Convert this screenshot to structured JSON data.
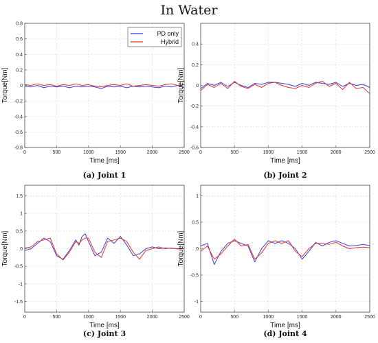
{
  "title": "In Water",
  "legend": [
    {
      "name": "PD only",
      "color": "#3b3bd6"
    },
    {
      "name": "Hybrid",
      "color": "#e03030"
    }
  ],
  "chart_data": [
    {
      "type": "line",
      "caption_label": "(a)",
      "caption_text": "Joint 1",
      "xlabel": "Time [ms]",
      "ylabel": "Torque[Nm]",
      "xlim": [
        0,
        2500
      ],
      "ylim": [
        -0.8,
        0.8
      ],
      "xticks": [
        0,
        500,
        1000,
        1500,
        2000,
        2500
      ],
      "yticks": [
        -0.8,
        -0.6,
        -0.4,
        -0.2,
        0,
        0.2,
        0.4,
        0.6,
        0.8
      ],
      "ytick_labels": [
        "-0.8",
        "-0.6",
        "-0.4",
        "-0.2",
        "0",
        "0.2",
        "0.4",
        "0.6",
        "0.8"
      ],
      "legend_position": "top-right",
      "series": [
        {
          "name": "PD only",
          "color": "#3b3bd6",
          "x": [
            0,
            100,
            200,
            300,
            400,
            500,
            600,
            700,
            800,
            900,
            1000,
            1100,
            1200,
            1300,
            1400,
            1500,
            1600,
            1700,
            1800,
            1900,
            2000,
            2100,
            2200,
            2300,
            2400,
            2500
          ],
          "y": [
            -0.01,
            -0.02,
            0.0,
            -0.03,
            -0.01,
            -0.02,
            -0.01,
            -0.03,
            -0.01,
            -0.02,
            -0.01,
            -0.02,
            -0.04,
            -0.01,
            -0.02,
            -0.01,
            -0.03,
            -0.01,
            -0.02,
            -0.01,
            -0.02,
            -0.03,
            -0.01,
            -0.02,
            0.0,
            -0.03
          ]
        },
        {
          "name": "Hybrid",
          "color": "#e03030",
          "x": [
            0,
            100,
            200,
            300,
            400,
            500,
            600,
            700,
            800,
            900,
            1000,
            1100,
            1200,
            1300,
            1400,
            1500,
            1600,
            1700,
            1800,
            1900,
            2000,
            2100,
            2200,
            2300,
            2400,
            2500
          ],
          "y": [
            0.01,
            0.0,
            0.02,
            0.0,
            0.01,
            -0.01,
            0.01,
            0.0,
            0.02,
            0.0,
            0.01,
            -0.01,
            -0.02,
            0.0,
            0.01,
            0.0,
            0.02,
            -0.01,
            0.0,
            0.01,
            0.0,
            -0.01,
            0.01,
            0.02,
            0.0,
            0.01
          ]
        }
      ]
    },
    {
      "type": "line",
      "caption_label": "(b)",
      "caption_text": "Joint 2",
      "xlabel": "Time [ms]",
      "ylabel": "Torque[Nm]",
      "xlim": [
        0,
        2500
      ],
      "ylim": [
        -0.6,
        0.6
      ],
      "xticks": [
        0,
        500,
        1000,
        1500,
        2000,
        2500
      ],
      "yticks": [
        -0.6,
        -0.4,
        -0.2,
        0,
        0.2,
        0.4
      ],
      "ytick_labels": [
        "-0.6",
        "-0.4",
        "-0.2",
        "0",
        "0.2",
        "0.4"
      ],
      "series": [
        {
          "name": "PD only",
          "color": "#3b3bd6",
          "x": [
            0,
            100,
            200,
            300,
            400,
            500,
            600,
            700,
            800,
            900,
            1000,
            1100,
            1200,
            1300,
            1400,
            1500,
            1600,
            1700,
            1800,
            1900,
            2000,
            2100,
            2200,
            2300,
            2400,
            2500
          ],
          "y": [
            -0.03,
            0.02,
            0.0,
            0.03,
            -0.01,
            0.03,
            0.0,
            -0.02,
            0.02,
            0.01,
            0.03,
            0.03,
            0.02,
            0.01,
            -0.01,
            0.02,
            0.0,
            0.03,
            0.02,
            0.01,
            0.03,
            -0.01,
            0.02,
            0.0,
            0.01,
            -0.02
          ]
        },
        {
          "name": "Hybrid",
          "color": "#e03030",
          "x": [
            0,
            100,
            200,
            300,
            400,
            500,
            600,
            700,
            800,
            900,
            1000,
            1100,
            1200,
            1300,
            1400,
            1500,
            1600,
            1700,
            1800,
            1900,
            2000,
            2100,
            2200,
            2300,
            2400,
            2500
          ],
          "y": [
            -0.05,
            0.01,
            -0.02,
            0.02,
            -0.03,
            0.04,
            -0.01,
            -0.03,
            0.01,
            -0.02,
            0.02,
            0.03,
            0.0,
            -0.02,
            -0.03,
            0.0,
            -0.02,
            0.02,
            0.04,
            -0.01,
            0.02,
            -0.04,
            0.03,
            -0.03,
            -0.02,
            -0.08
          ]
        }
      ]
    },
    {
      "type": "line",
      "caption_label": "(c)",
      "caption_text": "Joint 3",
      "xlabel": "Time [ms]",
      "ylabel": "Torque[Nm]",
      "xlim": [
        0,
        2500
      ],
      "ylim": [
        -1.8,
        1.8
      ],
      "xticks": [
        0,
        500,
        1000,
        1500,
        2000,
        2500
      ],
      "yticks": [
        -1.5,
        -1,
        -0.5,
        0,
        0.5,
        1,
        1.5
      ],
      "ytick_labels": [
        "-1.5",
        "-1",
        "-0.5",
        "0",
        "0.5",
        "1",
        "1.5"
      ],
      "series": [
        {
          "name": "PD only",
          "color": "#3b3bd6",
          "x": [
            0,
            100,
            200,
            300,
            400,
            500,
            600,
            700,
            800,
            850,
            900,
            950,
            1000,
            1100,
            1200,
            1300,
            1400,
            1500,
            1600,
            1700,
            1800,
            1900,
            2000,
            2100,
            2200,
            2300,
            2400,
            2500
          ],
          "y": [
            -0.05,
            0.0,
            0.15,
            0.3,
            0.2,
            -0.2,
            -0.3,
            -0.05,
            0.25,
            0.1,
            0.35,
            0.42,
            0.2,
            -0.2,
            -0.1,
            0.3,
            0.15,
            0.35,
            0.1,
            -0.2,
            -0.15,
            0.0,
            0.05,
            0.0,
            0.02,
            0.01,
            0.0,
            0.0
          ]
        },
        {
          "name": "Hybrid",
          "color": "#e03030",
          "x": [
            0,
            100,
            200,
            300,
            400,
            500,
            600,
            700,
            800,
            850,
            900,
            950,
            1000,
            1100,
            1200,
            1300,
            1400,
            1500,
            1600,
            1700,
            1800,
            1900,
            2000,
            2100,
            2200,
            2300,
            2400,
            2500
          ],
          "y": [
            0.02,
            0.05,
            0.2,
            0.25,
            0.3,
            -0.15,
            -0.32,
            -0.1,
            0.2,
            0.15,
            0.25,
            0.3,
            0.3,
            -0.1,
            -0.25,
            0.2,
            0.25,
            0.3,
            0.2,
            -0.1,
            -0.3,
            -0.05,
            0.0,
            0.05,
            0.0,
            0.02,
            -0.01,
            0.0
          ]
        }
      ]
    },
    {
      "type": "line",
      "caption_label": "(d)",
      "caption_text": "Joint 4",
      "xlabel": "Time [ms]",
      "ylabel": "Torque[Nm]",
      "xlim": [
        0,
        2500
      ],
      "ylim": [
        -1.2,
        1.2
      ],
      "xticks": [
        0,
        500,
        1000,
        1500,
        2000,
        2500
      ],
      "yticks": [
        -1,
        -0.5,
        0,
        0.5,
        1
      ],
      "ytick_labels": [
        "-1",
        "-0.5",
        "0",
        "0.5",
        "1"
      ],
      "series": [
        {
          "name": "PD only",
          "color": "#3b3bd6",
          "x": [
            0,
            100,
            200,
            300,
            400,
            500,
            600,
            700,
            800,
            900,
            1000,
            1100,
            1200,
            1300,
            1400,
            1500,
            1600,
            1700,
            1800,
            1900,
            2000,
            2100,
            2200,
            2300,
            2400,
            2500
          ],
          "y": [
            0.05,
            0.1,
            -0.3,
            -0.05,
            0.1,
            0.15,
            0.1,
            0.05,
            -0.25,
            0.0,
            0.15,
            0.1,
            0.15,
            0.1,
            0.0,
            -0.2,
            -0.05,
            0.12,
            0.05,
            0.12,
            0.15,
            0.1,
            0.05,
            0.06,
            0.08,
            0.06
          ]
        },
        {
          "name": "Hybrid",
          "color": "#e03030",
          "x": [
            0,
            100,
            200,
            300,
            400,
            500,
            600,
            700,
            800,
            900,
            1000,
            1100,
            1200,
            1300,
            1400,
            1500,
            1600,
            1700,
            1800,
            1900,
            2000,
            2100,
            2200,
            2300,
            2400,
            2500
          ],
          "y": [
            -0.05,
            0.05,
            -0.2,
            -0.1,
            0.05,
            0.18,
            0.05,
            0.08,
            -0.2,
            -0.08,
            0.1,
            0.15,
            0.1,
            0.15,
            -0.05,
            -0.15,
            0.0,
            0.1,
            0.1,
            0.08,
            0.12,
            0.05,
            0.0,
            0.02,
            0.03,
            0.02
          ]
        }
      ]
    }
  ]
}
